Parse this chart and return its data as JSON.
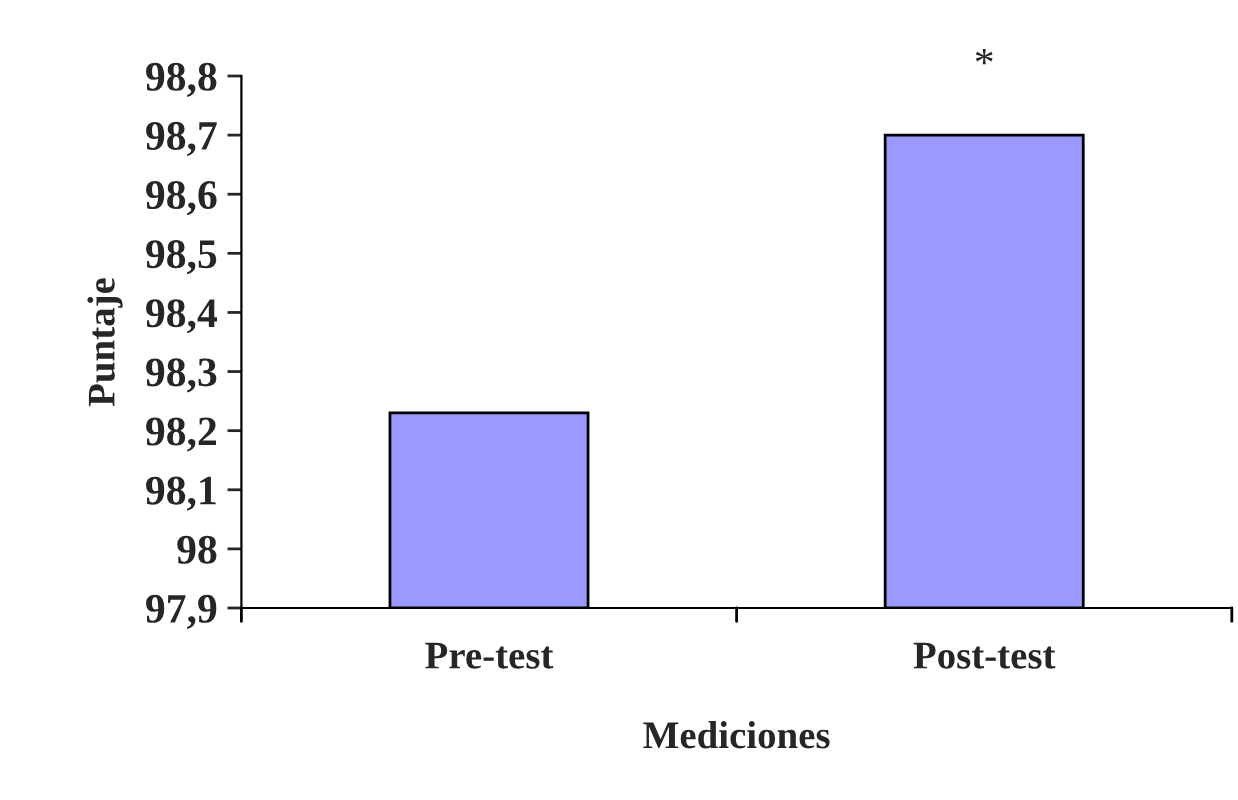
{
  "chart_data": {
    "type": "bar",
    "xlabel": "Mediciones",
    "ylabel": "Puntaje",
    "categories": [
      "Pre-test",
      "Post-test"
    ],
    "values": [
      98.23,
      98.7
    ],
    "color": "#9999ff",
    "ylim": [
      97.9,
      98.8
    ],
    "yticks": [
      {
        "value": 97.9,
        "label": "97,9"
      },
      {
        "value": 98.0,
        "label": "98"
      },
      {
        "value": 98.1,
        "label": "98,1"
      },
      {
        "value": 98.2,
        "label": "98,2"
      },
      {
        "value": 98.3,
        "label": "98,3"
      },
      {
        "value": 98.4,
        "label": "98,4"
      },
      {
        "value": 98.5,
        "label": "98,5"
      },
      {
        "value": 98.6,
        "label": "98,6"
      },
      {
        "value": 98.7,
        "label": "98,7"
      },
      {
        "value": 98.8,
        "label": "98,8"
      }
    ],
    "annotations": [
      {
        "text": "*",
        "x": "Post-test",
        "y": 98.7
      }
    ],
    "grid": false,
    "legend": false
  }
}
